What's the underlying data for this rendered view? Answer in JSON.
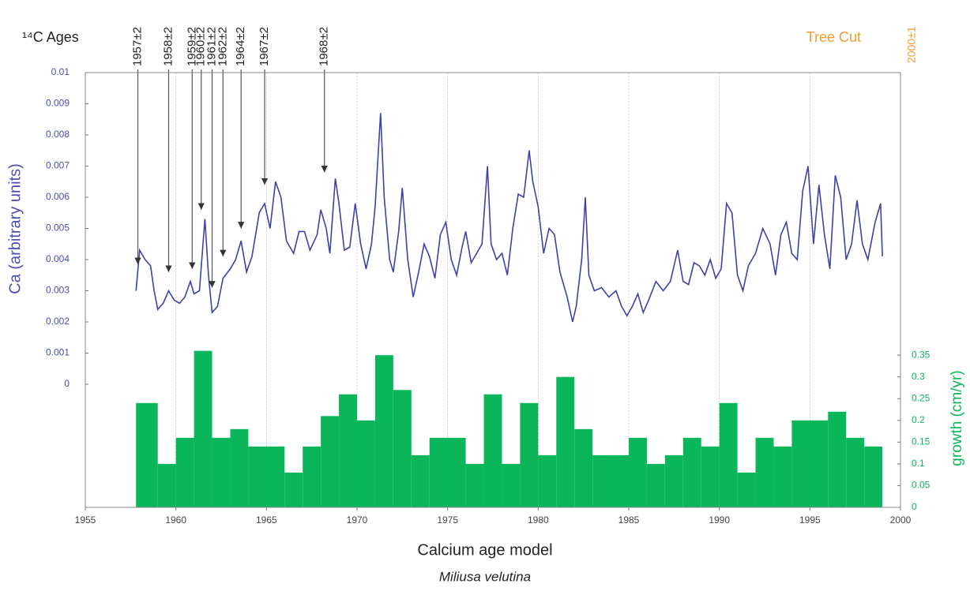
{
  "chart_data": [
    {
      "type": "line",
      "xlabel": "Calcium age model",
      "subtitle": "Miliusa velutina",
      "ylabel": "Ca (arbitrary units)",
      "annotations_title": "¹⁴C Ages",
      "end_label": "Tree Cut",
      "end_date": {
        "value": 2000,
        "label": "2000±1"
      },
      "annotations": [
        {
          "text": "1957±2",
          "x": 1957.9,
          "y": 0.00385
        },
        {
          "text": "1958±2",
          "x": 1959.6,
          "y": 0.0036
        },
        {
          "text": "1959±2",
          "x": 1960.9,
          "y": 0.0037
        },
        {
          "text": "1960±2",
          "x": 1961.4,
          "y": 0.0056
        },
        {
          "text": "1961±2",
          "x": 1962.0,
          "y": 0.0031
        },
        {
          "text": "1962±2",
          "x": 1962.6,
          "y": 0.0041
        },
        {
          "text": "1964±2",
          "x": 1963.6,
          "y": 0.005
        },
        {
          "text": "1967±2",
          "x": 1964.9,
          "y": 0.0064
        },
        {
          "text": "1968±2",
          "x": 1968.2,
          "y": 0.0068
        }
      ],
      "x": [
        1957.8,
        1958.0,
        1958.3,
        1958.6,
        1958.8,
        1959.0,
        1959.3,
        1959.6,
        1959.9,
        1960.2,
        1960.5,
        1960.8,
        1961.0,
        1961.3,
        1961.6,
        1961.8,
        1962.0,
        1962.3,
        1962.6,
        1963.0,
        1963.3,
        1963.6,
        1963.9,
        1964.2,
        1964.6,
        1964.9,
        1965.2,
        1965.5,
        1965.8,
        1966.1,
        1966.5,
        1966.8,
        1967.1,
        1967.4,
        1967.8,
        1968.0,
        1968.3,
        1968.5,
        1968.8,
        1969.0,
        1969.3,
        1969.6,
        1969.9,
        1970.2,
        1970.5,
        1970.8,
        1971.0,
        1971.3,
        1971.5,
        1971.8,
        1972.0,
        1972.3,
        1972.5,
        1972.8,
        1973.1,
        1973.4,
        1973.7,
        1974.0,
        1974.3,
        1974.6,
        1974.9,
        1975.2,
        1975.5,
        1975.8,
        1976.0,
        1976.3,
        1976.6,
        1976.9,
        1977.2,
        1977.4,
        1977.7,
        1978.0,
        1978.3,
        1978.6,
        1978.9,
        1979.2,
        1979.5,
        1979.7,
        1980.0,
        1980.3,
        1980.6,
        1980.9,
        1981.2,
        1981.6,
        1981.9,
        1982.1,
        1982.4,
        1982.6,
        1982.8,
        1983.1,
        1983.5,
        1983.9,
        1984.3,
        1984.6,
        1984.9,
        1985.2,
        1985.5,
        1985.8,
        1986.1,
        1986.5,
        1986.9,
        1987.3,
        1987.7,
        1988.0,
        1988.3,
        1988.6,
        1988.9,
        1989.2,
        1989.5,
        1989.8,
        1990.1,
        1990.4,
        1990.7,
        1991.0,
        1991.3,
        1991.6,
        1992.0,
        1992.4,
        1992.8,
        1993.1,
        1993.4,
        1993.7,
        1994.0,
        1994.3,
        1994.6,
        1994.9,
        1995.2,
        1995.5,
        1995.8,
        1996.1,
        1996.4,
        1996.7,
        1997.0,
        1997.3,
        1997.6,
        1997.9,
        1998.2,
        1998.6,
        1998.9,
        1999.0
      ],
      "series": [
        {
          "name": "Ca",
          "color": "#3c43a3",
          "axis": "y",
          "values": [
            0.003,
            0.0043,
            0.004,
            0.0038,
            0.003,
            0.0024,
            0.0026,
            0.003,
            0.0027,
            0.0026,
            0.0028,
            0.0033,
            0.0029,
            0.003,
            0.0053,
            0.0035,
            0.0023,
            0.0025,
            0.0034,
            0.0037,
            0.004,
            0.0046,
            0.0036,
            0.0041,
            0.0055,
            0.0058,
            0.005,
            0.0065,
            0.006,
            0.0046,
            0.0042,
            0.0049,
            0.0049,
            0.0043,
            0.0048,
            0.0056,
            0.005,
            0.0042,
            0.0066,
            0.0058,
            0.0043,
            0.0044,
            0.0058,
            0.0045,
            0.0037,
            0.0045,
            0.0057,
            0.0087,
            0.006,
            0.004,
            0.0036,
            0.0049,
            0.0063,
            0.004,
            0.0028,
            0.0036,
            0.0045,
            0.0041,
            0.0034,
            0.0048,
            0.0052,
            0.004,
            0.0035,
            0.0044,
            0.0049,
            0.0039,
            0.0042,
            0.0045,
            0.007,
            0.0045,
            0.004,
            0.0042,
            0.0035,
            0.005,
            0.0061,
            0.006,
            0.0075,
            0.0065,
            0.0057,
            0.0042,
            0.005,
            0.0048,
            0.0036,
            0.0028,
            0.002,
            0.0025,
            0.004,
            0.006,
            0.0035,
            0.003,
            0.0031,
            0.0028,
            0.003,
            0.0025,
            0.0022,
            0.0025,
            0.0029,
            0.0023,
            0.0027,
            0.0033,
            0.003,
            0.0033,
            0.0043,
            0.0033,
            0.0032,
            0.0039,
            0.0038,
            0.0035,
            0.004,
            0.0034,
            0.0037,
            0.0058,
            0.0055,
            0.0035,
            0.003,
            0.0038,
            0.0042,
            0.005,
            0.0045,
            0.0035,
            0.0048,
            0.0052,
            0.0042,
            0.004,
            0.0062,
            0.007,
            0.0045,
            0.0064,
            0.0048,
            0.0037,
            0.0067,
            0.006,
            0.004,
            0.0045,
            0.0059,
            0.0045,
            0.004,
            0.0052,
            0.0058,
            0.0041
          ]
        }
      ],
      "xlim": [
        1955,
        2000
      ],
      "xticks": [
        1955,
        1960,
        1965,
        1970,
        1975,
        1980,
        1985,
        1990,
        1995,
        2000
      ],
      "ylim": [
        -0.00395,
        0.01
      ],
      "yticks": [
        0,
        0.001,
        0.002,
        0.003,
        0.004,
        0.005,
        0.006,
        0.007,
        0.008,
        0.009,
        0.01
      ],
      "grid": true,
      "annotation_color": "#f39a2b",
      "axis_color": "#4a4fae"
    },
    {
      "type": "histogram",
      "ylabel": "growth (cm/yr)",
      "color": "#0bb65a",
      "bins": [
        1957.8,
        1959,
        1960,
        1961,
        1962,
        1963,
        1964,
        1966,
        1967,
        1968,
        1969,
        1970,
        1971,
        1972,
        1973,
        1974,
        1976,
        1977,
        1978,
        1979,
        1980,
        1981,
        1982,
        1983,
        1985,
        1986,
        1987,
        1988,
        1989,
        1990,
        1991,
        1992,
        1993,
        1994,
        1996,
        1997,
        1998,
        1999
      ],
      "values": [
        0.24,
        0.1,
        0.16,
        0.36,
        0.16,
        0.18,
        0.14,
        0.08,
        0.14,
        0.21,
        0.26,
        0.2,
        0.35,
        0.27,
        0.12,
        0.16,
        0.1,
        0.26,
        0.1,
        0.24,
        0.12,
        0.3,
        0.18,
        0.12,
        0.16,
        0.1,
        0.12,
        0.16,
        0.14,
        0.24,
        0.08,
        0.16,
        0.14,
        0.2,
        0.22,
        0.16,
        0.14
      ],
      "ylim": [
        0,
        1
      ],
      "yticks": [
        0,
        0.05,
        0.1,
        0.15,
        0.2,
        0.25,
        0.3,
        0.35
      ]
    }
  ]
}
